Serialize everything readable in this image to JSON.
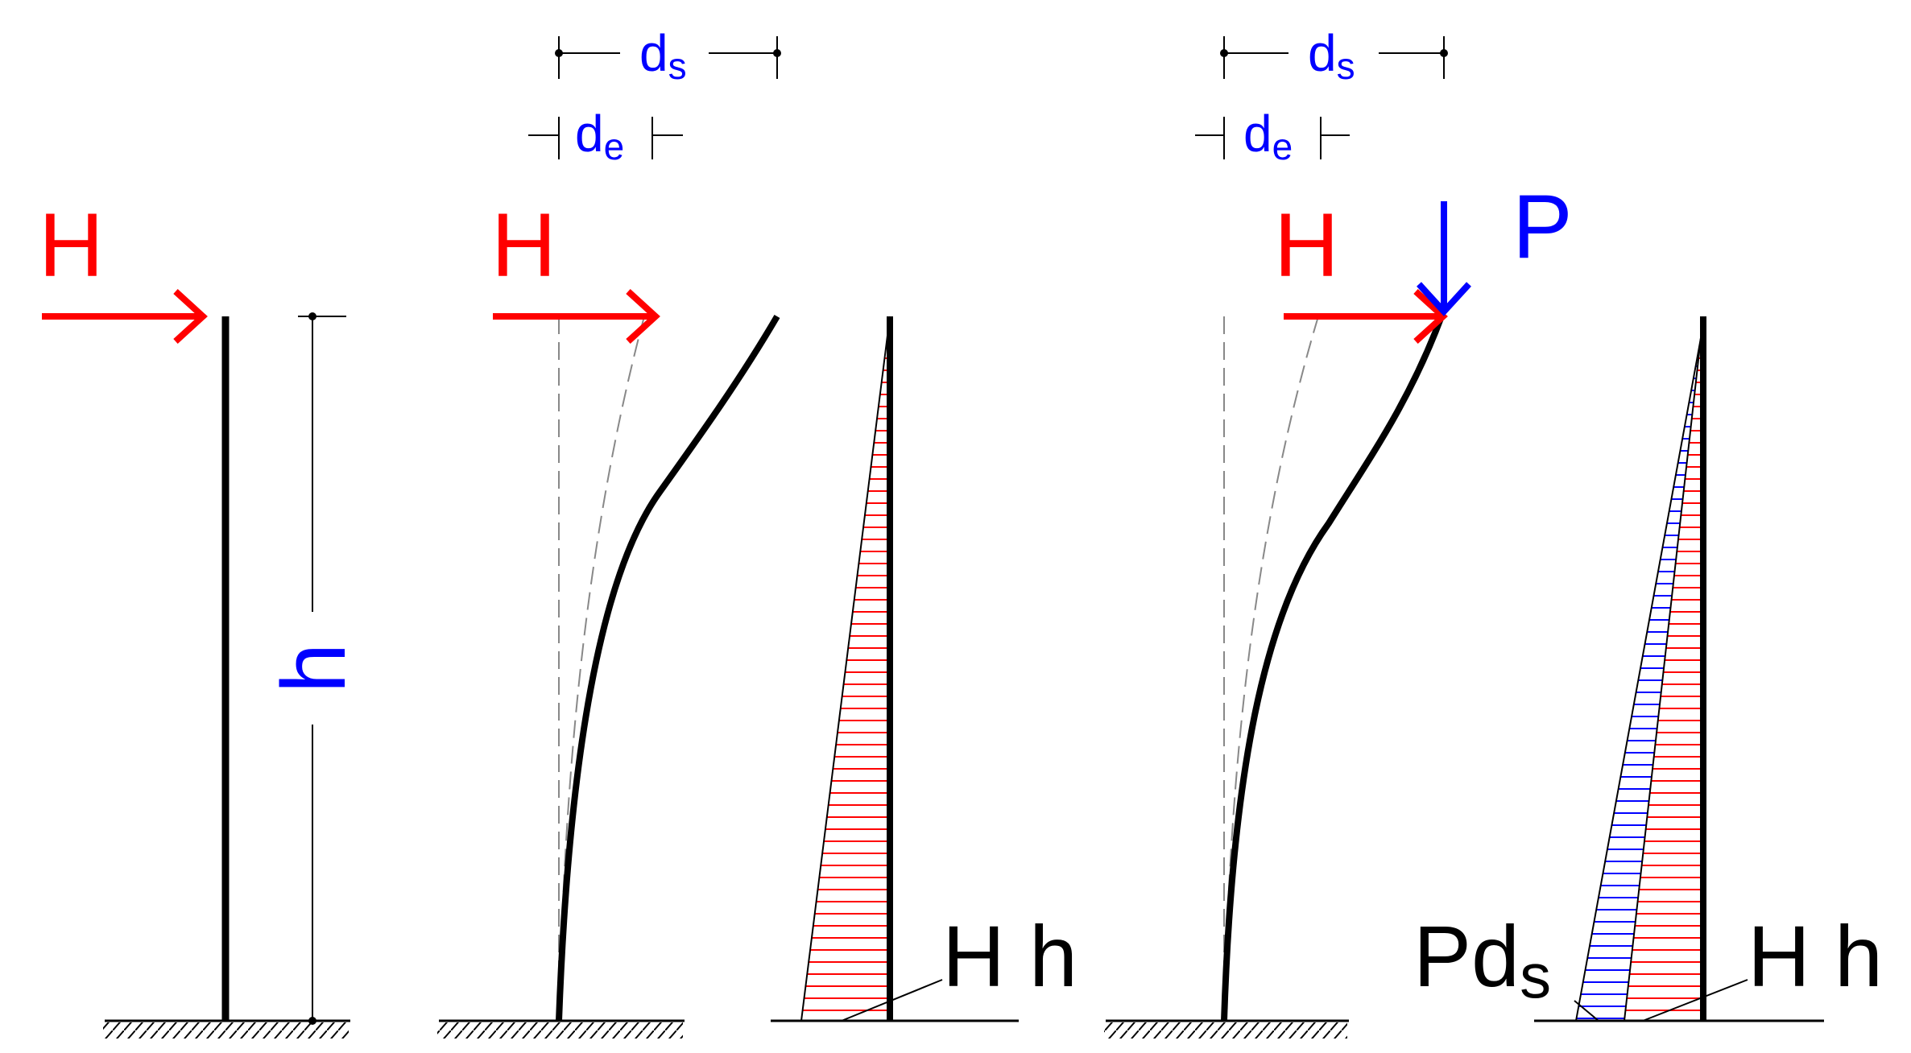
{
  "colors": {
    "load": "#ff0000",
    "p_load": "#0000ff",
    "member": "#000000",
    "moment_h": "#ff0000",
    "moment_p": "#0000ff"
  },
  "panel1": {
    "force_label": "H",
    "height_label": "h"
  },
  "panel2": {
    "force_label": "H",
    "ds_base": "d",
    "ds_sub": "s",
    "de_base": "d",
    "de_sub": "e",
    "moment_label": "H h"
  },
  "panel3": {
    "force_label": "H",
    "axial_label": "P",
    "ds_base": "d",
    "ds_sub": "s",
    "de_base": "d",
    "de_sub": "e",
    "moment_p_base": "Pd",
    "moment_p_sub": "s",
    "moment_h_label": "H h"
  }
}
